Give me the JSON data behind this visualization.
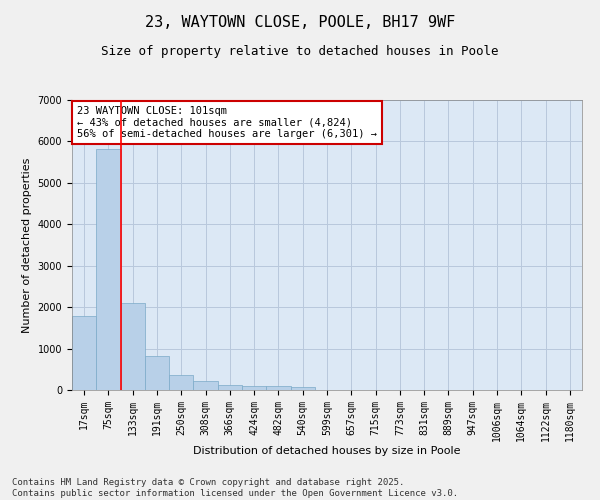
{
  "title": "23, WAYTOWN CLOSE, POOLE, BH17 9WF",
  "subtitle": "Size of property relative to detached houses in Poole",
  "xlabel": "Distribution of detached houses by size in Poole",
  "ylabel": "Number of detached properties",
  "categories": [
    "17sqm",
    "75sqm",
    "133sqm",
    "191sqm",
    "250sqm",
    "308sqm",
    "366sqm",
    "424sqm",
    "482sqm",
    "540sqm",
    "599sqm",
    "657sqm",
    "715sqm",
    "773sqm",
    "831sqm",
    "889sqm",
    "947sqm",
    "1006sqm",
    "1064sqm",
    "1122sqm",
    "1180sqm"
  ],
  "values": [
    1780,
    5820,
    2090,
    820,
    370,
    210,
    130,
    95,
    90,
    65,
    0,
    0,
    0,
    0,
    0,
    0,
    0,
    0,
    0,
    0,
    0
  ],
  "bar_color": "#b8d0e8",
  "bar_edge_color": "#7aaac8",
  "red_line_index": 1,
  "annotation_text": "23 WAYTOWN CLOSE: 101sqm\n← 43% of detached houses are smaller (4,824)\n56% of semi-detached houses are larger (6,301) →",
  "annotation_box_color": "#ffffff",
  "annotation_box_edge_color": "#cc0000",
  "ylim": [
    0,
    7000
  ],
  "yticks": [
    0,
    1000,
    2000,
    3000,
    4000,
    5000,
    6000,
    7000
  ],
  "bg_color": "#dce8f5",
  "grid_color": "#b8c8dc",
  "footer": "Contains HM Land Registry data © Crown copyright and database right 2025.\nContains public sector information licensed under the Open Government Licence v3.0.",
  "title_fontsize": 11,
  "subtitle_fontsize": 9,
  "axis_label_fontsize": 8,
  "tick_fontsize": 7,
  "annotation_fontsize": 7.5,
  "footer_fontsize": 6.5
}
